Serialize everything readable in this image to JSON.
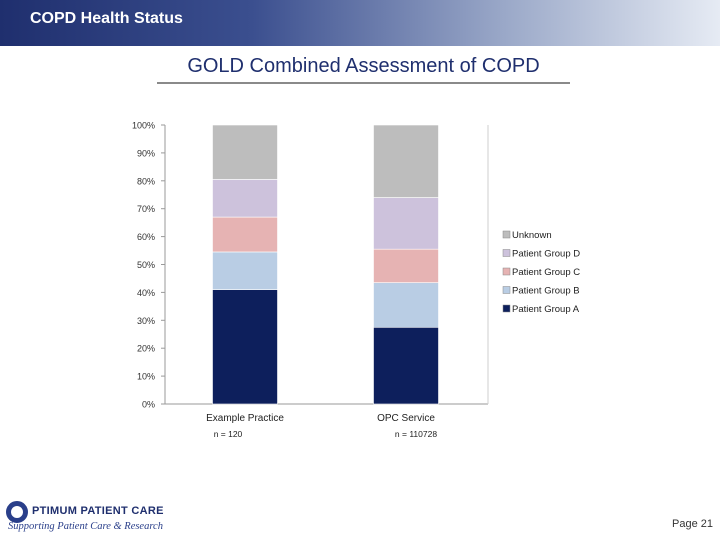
{
  "header": {
    "title": "COPD Health Status"
  },
  "slide": {
    "title": "GOLD Combined Assessment of COPD"
  },
  "logo": {
    "name": "PTIMUM PATIENT CARE",
    "tagline": "Supporting Patient Care & Research"
  },
  "footer": {
    "page_label": "Page 21"
  },
  "colors": {
    "header_dark": "#1f2f6e",
    "patient_group_a": "#0d1f5c",
    "patient_group_b": "#b9cde4",
    "patient_group_c": "#e6b3b3",
    "patient_group_d": "#cdc2dc",
    "unknown": "#bdbdbd"
  },
  "chart_data": {
    "type": "bar",
    "stacked": true,
    "normalized": true,
    "title": "GOLD Combined Assessment of COPD",
    "categories": [
      "Example Practice",
      "OPC Service"
    ],
    "category_notes": [
      "n = 120",
      "n = 110728"
    ],
    "ylim": [
      0,
      100
    ],
    "yticks": [
      "0%",
      "10%",
      "20%",
      "30%",
      "40%",
      "50%",
      "60%",
      "70%",
      "80%",
      "90%",
      "100%"
    ],
    "series": [
      {
        "name": "Patient Group A",
        "values": [
          41,
          27.5
        ]
      },
      {
        "name": "Patient Group B",
        "values": [
          13.5,
          16
        ]
      },
      {
        "name": "Patient Group C",
        "values": [
          12.5,
          12
        ]
      },
      {
        "name": "Patient Group D",
        "values": [
          13.5,
          18.5
        ]
      },
      {
        "name": "Unknown",
        "values": [
          19.5,
          26
        ]
      }
    ],
    "legend_order": [
      "Unknown",
      "Patient Group D",
      "Patient Group C",
      "Patient Group B",
      "Patient Group A"
    ],
    "legend_position": "right"
  }
}
